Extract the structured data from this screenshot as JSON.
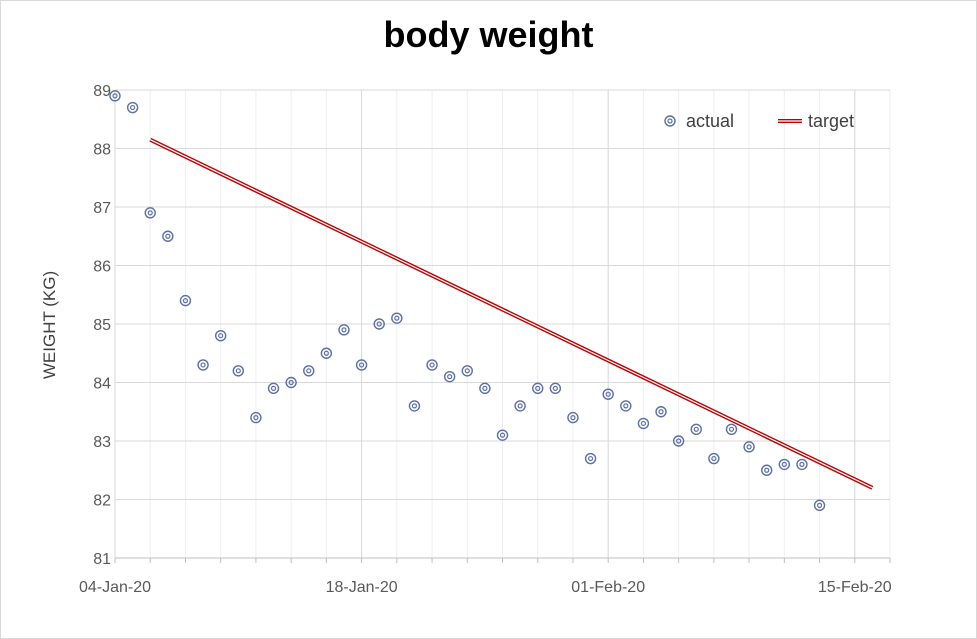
{
  "chart_data": {
    "type": "scatter",
    "title": "body weight",
    "xlabel": "",
    "ylabel": "WEIGHT (KG)",
    "ylim": [
      81,
      89
    ],
    "yticks": [
      "81",
      "82",
      "83",
      "84",
      "85",
      "86",
      "87",
      "88",
      "89"
    ],
    "xlim": [
      "2020-01-04",
      "2020-02-17"
    ],
    "xticks": [
      {
        "date": "2020-01-04",
        "label": "04-Jan-20"
      },
      {
        "date": "2020-01-18",
        "label": "18-Jan-20"
      },
      {
        "date": "2020-02-01",
        "label": "01-Feb-20"
      },
      {
        "date": "2020-02-15",
        "label": "15-Feb-20"
      }
    ],
    "grid": true,
    "legend_position": "top-right",
    "series": [
      {
        "name": "actual",
        "type": "scatter",
        "color": "#5b6fa8",
        "points": [
          {
            "x": "2020-01-04",
            "y": 88.9
          },
          {
            "x": "2020-01-05",
            "y": 88.7
          },
          {
            "x": "2020-01-06",
            "y": 86.9
          },
          {
            "x": "2020-01-07",
            "y": 86.5
          },
          {
            "x": "2020-01-08",
            "y": 85.4
          },
          {
            "x": "2020-01-09",
            "y": 84.3
          },
          {
            "x": "2020-01-10",
            "y": 84.8
          },
          {
            "x": "2020-01-11",
            "y": 84.2
          },
          {
            "x": "2020-01-12",
            "y": 83.4
          },
          {
            "x": "2020-01-13",
            "y": 83.9
          },
          {
            "x": "2020-01-14",
            "y": 84.0
          },
          {
            "x": "2020-01-15",
            "y": 84.2
          },
          {
            "x": "2020-01-16",
            "y": 84.5
          },
          {
            "x": "2020-01-17",
            "y": 84.9
          },
          {
            "x": "2020-01-18",
            "y": 84.3
          },
          {
            "x": "2020-01-19",
            "y": 85.0
          },
          {
            "x": "2020-01-20",
            "y": 85.1
          },
          {
            "x": "2020-01-21",
            "y": 83.6
          },
          {
            "x": "2020-01-22",
            "y": 84.3
          },
          {
            "x": "2020-01-23",
            "y": 84.1
          },
          {
            "x": "2020-01-24",
            "y": 84.2
          },
          {
            "x": "2020-01-25",
            "y": 83.9
          },
          {
            "x": "2020-01-26",
            "y": 83.1
          },
          {
            "x": "2020-01-27",
            "y": 83.6
          },
          {
            "x": "2020-01-28",
            "y": 83.9
          },
          {
            "x": "2020-01-29",
            "y": 83.9
          },
          {
            "x": "2020-01-30",
            "y": 83.4
          },
          {
            "x": "2020-01-31",
            "y": 82.7
          },
          {
            "x": "2020-02-01",
            "y": 83.8
          },
          {
            "x": "2020-02-02",
            "y": 83.6
          },
          {
            "x": "2020-02-03",
            "y": 83.3
          },
          {
            "x": "2020-02-04",
            "y": 83.5
          },
          {
            "x": "2020-02-05",
            "y": 83.0
          },
          {
            "x": "2020-02-06",
            "y": 83.2
          },
          {
            "x": "2020-02-07",
            "y": 82.7
          },
          {
            "x": "2020-02-08",
            "y": 83.2
          },
          {
            "x": "2020-02-09",
            "y": 82.9
          },
          {
            "x": "2020-02-10",
            "y": 82.5
          },
          {
            "x": "2020-02-11",
            "y": 82.6
          },
          {
            "x": "2020-02-12",
            "y": 82.6
          },
          {
            "x": "2020-02-13",
            "y": 81.9
          }
        ]
      },
      {
        "name": "target",
        "type": "line",
        "color": "#c00000",
        "points": [
          {
            "x": "2020-01-06",
            "y": 88.15
          },
          {
            "x": "2020-02-16",
            "y": 82.2
          }
        ]
      }
    ]
  }
}
